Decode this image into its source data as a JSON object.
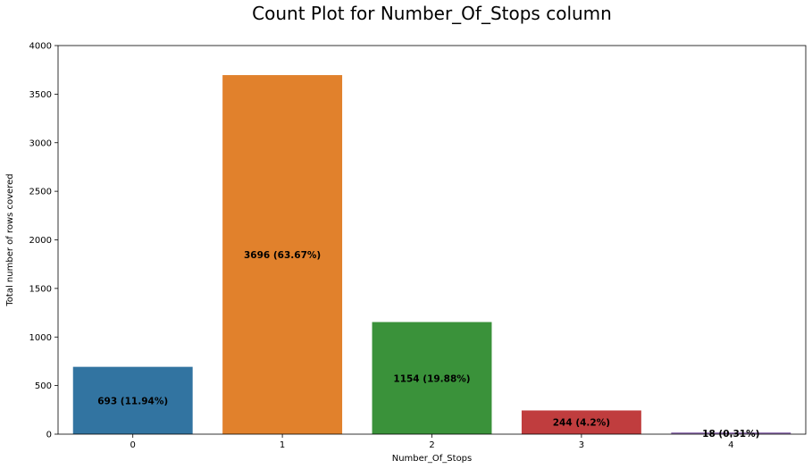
{
  "chart_data": {
    "type": "bar",
    "title": "Count Plot for Number_Of_Stops column",
    "xlabel": "Number_Of_Stops",
    "ylabel": "Total number of rows covered",
    "categories": [
      "0",
      "1",
      "2",
      "3",
      "4"
    ],
    "values": [
      693,
      3696,
      1154,
      244,
      18
    ],
    "data_labels": [
      "693 (11.94%)",
      "3696 (63.67%)",
      "1154 (19.88%)",
      "244 (4.2%)",
      "18 (0.31%)"
    ],
    "colors": [
      "#3274a1",
      "#e1812c",
      "#3a923a",
      "#c03d3e",
      "#9372b2"
    ],
    "ylim": [
      0,
      4000
    ],
    "yticks": [
      0,
      500,
      1000,
      1500,
      2000,
      2500,
      3000,
      3500,
      4000
    ],
    "grid": false,
    "legend": "none"
  }
}
